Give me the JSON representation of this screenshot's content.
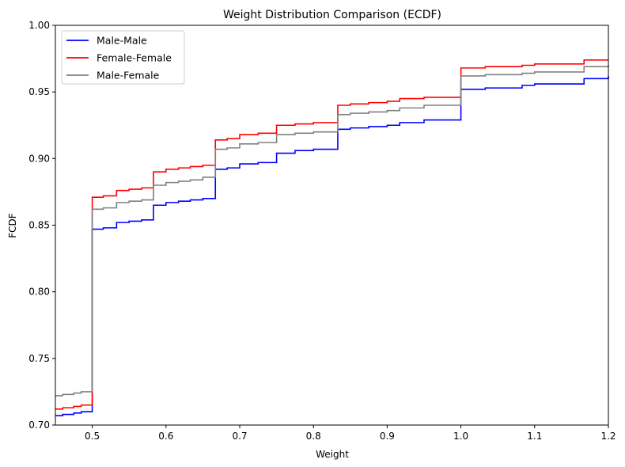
{
  "chart_data": {
    "type": "line",
    "subtype": "ecdf-step",
    "title": "Weight Distribution Comparison (ECDF)",
    "xlabel": "Weight",
    "ylabel": "FCDF",
    "xlim": [
      0.45,
      1.2
    ],
    "ylim": [
      0.7,
      1.0
    ],
    "xticks": [
      0.5,
      0.6,
      0.7,
      0.8,
      0.9,
      1.0,
      1.1,
      1.2
    ],
    "xtick_labels": [
      "0.5",
      "0.6",
      "0.7",
      "0.8",
      "0.9",
      "1.0",
      "1.1",
      "1.2"
    ],
    "yticks": [
      0.7,
      0.75,
      0.8,
      0.85,
      0.9,
      0.95,
      1.0
    ],
    "ytick_labels": [
      "0.70",
      "0.75",
      "0.80",
      "0.85",
      "0.90",
      "0.95",
      "1.00"
    ],
    "grid": false,
    "legend_position": "top-left",
    "series": [
      {
        "name": "Male-Male",
        "color": "#0000ff",
        "points": [
          [
            0.45,
            0.707
          ],
          [
            0.46,
            0.708
          ],
          [
            0.475,
            0.709
          ],
          [
            0.485,
            0.71
          ],
          [
            0.5,
            0.847
          ],
          [
            0.515,
            0.848
          ],
          [
            0.533,
            0.852
          ],
          [
            0.55,
            0.853
          ],
          [
            0.567,
            0.854
          ],
          [
            0.583,
            0.865
          ],
          [
            0.6,
            0.867
          ],
          [
            0.617,
            0.868
          ],
          [
            0.633,
            0.869
          ],
          [
            0.65,
            0.87
          ],
          [
            0.667,
            0.892
          ],
          [
            0.683,
            0.893
          ],
          [
            0.7,
            0.896
          ],
          [
            0.725,
            0.897
          ],
          [
            0.75,
            0.904
          ],
          [
            0.775,
            0.906
          ],
          [
            0.8,
            0.907
          ],
          [
            0.833,
            0.922
          ],
          [
            0.85,
            0.923
          ],
          [
            0.875,
            0.924
          ],
          [
            0.9,
            0.925
          ],
          [
            0.917,
            0.927
          ],
          [
            0.95,
            0.929
          ],
          [
            1.0,
            0.952
          ],
          [
            1.033,
            0.953
          ],
          [
            1.083,
            0.955
          ],
          [
            1.1,
            0.956
          ],
          [
            1.167,
            0.96
          ],
          [
            1.2,
            0.962
          ]
        ]
      },
      {
        "name": "Female-Female",
        "color": "#ff0000",
        "points": [
          [
            0.45,
            0.712
          ],
          [
            0.46,
            0.713
          ],
          [
            0.475,
            0.714
          ],
          [
            0.485,
            0.715
          ],
          [
            0.5,
            0.871
          ],
          [
            0.515,
            0.872
          ],
          [
            0.533,
            0.876
          ],
          [
            0.55,
            0.877
          ],
          [
            0.567,
            0.878
          ],
          [
            0.583,
            0.89
          ],
          [
            0.6,
            0.892
          ],
          [
            0.617,
            0.893
          ],
          [
            0.633,
            0.894
          ],
          [
            0.65,
            0.895
          ],
          [
            0.667,
            0.914
          ],
          [
            0.683,
            0.915
          ],
          [
            0.7,
            0.918
          ],
          [
            0.725,
            0.919
          ],
          [
            0.75,
            0.925
          ],
          [
            0.775,
            0.926
          ],
          [
            0.8,
            0.927
          ],
          [
            0.833,
            0.94
          ],
          [
            0.85,
            0.941
          ],
          [
            0.875,
            0.942
          ],
          [
            0.9,
            0.943
          ],
          [
            0.917,
            0.945
          ],
          [
            0.95,
            0.946
          ],
          [
            1.0,
            0.968
          ],
          [
            1.033,
            0.969
          ],
          [
            1.083,
            0.97
          ],
          [
            1.1,
            0.971
          ],
          [
            1.167,
            0.974
          ],
          [
            1.2,
            0.974
          ]
        ]
      },
      {
        "name": "Male-Female",
        "color": "#808080",
        "points": [
          [
            0.45,
            0.722
          ],
          [
            0.46,
            0.723
          ],
          [
            0.475,
            0.724
          ],
          [
            0.485,
            0.725
          ],
          [
            0.5,
            0.862
          ],
          [
            0.515,
            0.863
          ],
          [
            0.533,
            0.867
          ],
          [
            0.55,
            0.868
          ],
          [
            0.567,
            0.869
          ],
          [
            0.583,
            0.88
          ],
          [
            0.6,
            0.882
          ],
          [
            0.617,
            0.883
          ],
          [
            0.633,
            0.884
          ],
          [
            0.65,
            0.886
          ],
          [
            0.667,
            0.907
          ],
          [
            0.683,
            0.908
          ],
          [
            0.7,
            0.911
          ],
          [
            0.725,
            0.912
          ],
          [
            0.75,
            0.918
          ],
          [
            0.775,
            0.919
          ],
          [
            0.8,
            0.92
          ],
          [
            0.833,
            0.933
          ],
          [
            0.85,
            0.934
          ],
          [
            0.875,
            0.935
          ],
          [
            0.9,
            0.936
          ],
          [
            0.917,
            0.938
          ],
          [
            0.95,
            0.94
          ],
          [
            1.0,
            0.962
          ],
          [
            1.033,
            0.963
          ],
          [
            1.083,
            0.964
          ],
          [
            1.1,
            0.965
          ],
          [
            1.167,
            0.969
          ],
          [
            1.2,
            0.97
          ]
        ]
      }
    ]
  }
}
